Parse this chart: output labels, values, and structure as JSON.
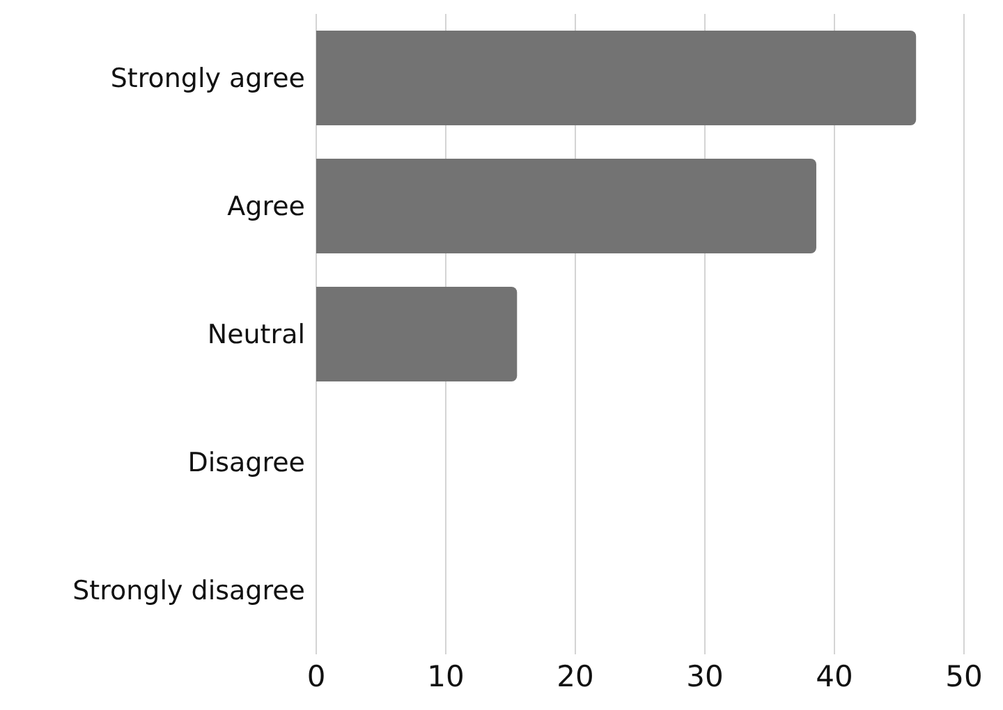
{
  "chart_data": {
    "type": "bar",
    "orientation": "horizontal",
    "categories": [
      "Strongly agree",
      "Agree",
      "Neutral",
      "Disagree",
      "Strongly disagree"
    ],
    "values": [
      46.3,
      38.6,
      15.5,
      0,
      0
    ],
    "color": "#737373",
    "xlim": [
      0,
      50
    ],
    "xticks": [
      0,
      10,
      20,
      30,
      40,
      50
    ],
    "grid": "x"
  }
}
